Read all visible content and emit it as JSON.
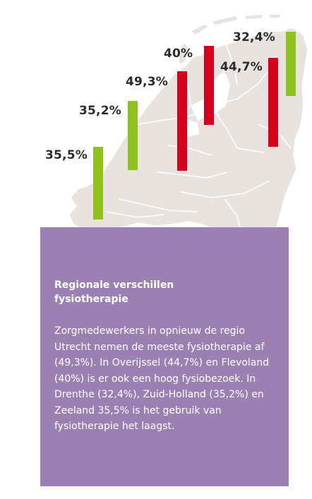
{
  "colors": {
    "map_fill": "#e8e3de",
    "map_line": "#ffffff",
    "bar_green": "#8dc21f",
    "bar_red": "#d6001c",
    "box_purple": "#9b80b2",
    "label_text": "#2b2b2b"
  },
  "bars": [
    {
      "label": "35,5%",
      "value": 35.5,
      "color": "green"
    },
    {
      "label": "35,2%",
      "value": 35.2,
      "color": "green"
    },
    {
      "label": "49,3%",
      "value": 49.3,
      "color": "red"
    },
    {
      "label": "40%",
      "value": 40.0,
      "color": "red"
    },
    {
      "label": "44,7%",
      "value": 44.7,
      "color": "red"
    },
    {
      "label": "32,4%",
      "value": 32.4,
      "color": "green"
    }
  ],
  "info": {
    "title": "Regionale verschillen fysiotherapie",
    "body": "Zorgmedewerkers in opnieuw de regio Utrecht nemen de meeste fysiotherapie af (49,3%). In Overijssel (44,7%) en Flevoland (40%) is er ook een hoog fysiobezoek. In Drenthe (32,4%), Zuid-Holland (35,2%) en Zeeland 35,5% is het gebruik van fysiotherapie het laagst."
  }
}
